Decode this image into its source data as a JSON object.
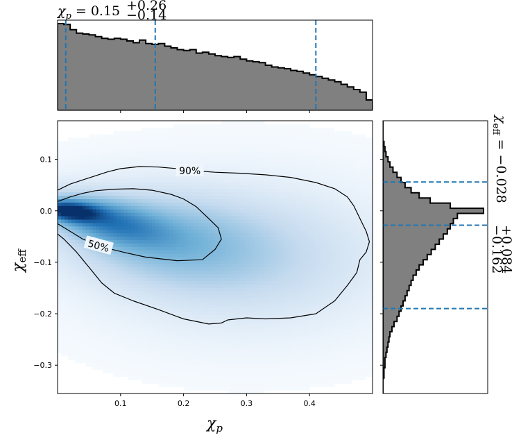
{
  "chart_data": {
    "type": "corner",
    "xlabel_symbol": "χ",
    "xlabel_sub": "p",
    "ylabel_symbol": "χ",
    "ylabel_sub": "eff",
    "top_title": {
      "symbol": "χ",
      "sub": "p",
      "equals": " = ",
      "median": "0.15",
      "upper": "+0.26",
      "lower": "−0.14"
    },
    "right_title": {
      "symbol": "χ",
      "sub": "eff",
      "equals": " = ",
      "median": "−0.028",
      "upper": "+0.084",
      "lower": "−0.162"
    },
    "x_range": [
      0.0,
      0.5
    ],
    "y_range": [
      -0.355,
      0.175
    ],
    "x_ticks": [
      0.1,
      0.2,
      0.3,
      0.4
    ],
    "x_tick_labels": [
      "0.1",
      "0.2",
      "0.3",
      "0.4"
    ],
    "y_ticks": [
      0.1,
      0.0,
      -0.1,
      -0.2,
      -0.3
    ],
    "y_tick_labels": [
      "0.1",
      "0.0",
      "−0.1",
      "−0.2",
      "−0.3"
    ],
    "chi_p_histogram": {
      "bin_edges_start": 0.0,
      "bin_width": 0.01,
      "counts": [
        1.0,
        0.99,
        0.93,
        0.89,
        0.88,
        0.87,
        0.85,
        0.83,
        0.82,
        0.83,
        0.82,
        0.8,
        0.78,
        0.81,
        0.77,
        0.76,
        0.77,
        0.74,
        0.72,
        0.7,
        0.69,
        0.7,
        0.66,
        0.67,
        0.65,
        0.63,
        0.62,
        0.61,
        0.62,
        0.59,
        0.57,
        0.56,
        0.55,
        0.52,
        0.5,
        0.49,
        0.48,
        0.46,
        0.45,
        0.43,
        0.41,
        0.39,
        0.37,
        0.35,
        0.33,
        0.3,
        0.27,
        0.24,
        0.21,
        0.12
      ],
      "quantile_lines": [
        0.013,
        0.155,
        0.41
      ],
      "color": "#808080"
    },
    "chi_eff_histogram": {
      "bin_edges_start": -0.355,
      "bin_width": 0.01,
      "counts": [
        0.0,
        0.0,
        0.0,
        0.01,
        0.01,
        0.02,
        0.02,
        0.03,
        0.04,
        0.05,
        0.06,
        0.07,
        0.09,
        0.11,
        0.14,
        0.16,
        0.18,
        0.2,
        0.22,
        0.24,
        0.26,
        0.28,
        0.3,
        0.33,
        0.36,
        0.4,
        0.44,
        0.48,
        0.52,
        0.56,
        0.6,
        0.64,
        0.67,
        0.7,
        0.74,
        1.0,
        0.67,
        0.47,
        0.36,
        0.28,
        0.22,
        0.18,
        0.14,
        0.1,
        0.07,
        0.05,
        0.03,
        0.02,
        0.01,
        0.0,
        0.0,
        0.0,
        0.0
      ],
      "quantile_lines": [
        -0.19,
        -0.028,
        0.056
      ],
      "color": "#808080"
    },
    "density": {
      "colormap": "Blues",
      "peak": [
        0.015,
        0.0
      ],
      "components": [
        {
          "cx": 0.02,
          "cy": -0.001,
          "sx": 0.03,
          "sy": 0.012,
          "w": 1.0,
          "rho": -0.3
        },
        {
          "cx": 0.08,
          "cy": -0.02,
          "sx": 0.06,
          "sy": 0.03,
          "w": 0.45,
          "rho": -0.5
        },
        {
          "cx": 0.17,
          "cy": -0.055,
          "sx": 0.1,
          "sy": 0.055,
          "w": 0.22,
          "rho": -0.2
        },
        {
          "cx": 0.3,
          "cy": -0.09,
          "sx": 0.13,
          "sy": 0.08,
          "w": 0.1,
          "rho": 0.0
        }
      ]
    },
    "contours": [
      {
        "label": "90%",
        "label_pos": [
          0.21,
          0.078
        ],
        "points": [
          [
            0.0,
            0.04
          ],
          [
            0.02,
            0.052
          ],
          [
            0.05,
            0.064
          ],
          [
            0.08,
            0.076
          ],
          [
            0.1,
            0.082
          ],
          [
            0.13,
            0.086
          ],
          [
            0.16,
            0.085
          ],
          [
            0.19,
            0.082
          ],
          [
            0.215,
            0.078
          ],
          [
            0.25,
            0.075
          ],
          [
            0.29,
            0.073
          ],
          [
            0.33,
            0.07
          ],
          [
            0.37,
            0.065
          ],
          [
            0.41,
            0.055
          ],
          [
            0.44,
            0.043
          ],
          [
            0.46,
            0.027
          ],
          [
            0.47,
            0.01
          ],
          [
            0.48,
            -0.015
          ],
          [
            0.49,
            -0.04
          ],
          [
            0.495,
            -0.06
          ],
          [
            0.49,
            -0.08
          ],
          [
            0.48,
            -0.095
          ],
          [
            0.475,
            -0.12
          ],
          [
            0.46,
            -0.145
          ],
          [
            0.44,
            -0.175
          ],
          [
            0.41,
            -0.2
          ],
          [
            0.37,
            -0.208
          ],
          [
            0.33,
            -0.21
          ],
          [
            0.3,
            -0.208
          ],
          [
            0.27,
            -0.212
          ],
          [
            0.26,
            -0.218
          ],
          [
            0.24,
            -0.22
          ],
          [
            0.2,
            -0.21
          ],
          [
            0.16,
            -0.192
          ],
          [
            0.12,
            -0.175
          ],
          [
            0.09,
            -0.16
          ],
          [
            0.07,
            -0.14
          ],
          [
            0.05,
            -0.11
          ],
          [
            0.03,
            -0.08
          ],
          [
            0.01,
            -0.055
          ],
          [
            0.0,
            -0.045
          ]
        ]
      },
      {
        "label": "50%",
        "label_pos": [
          0.065,
          -0.068
        ],
        "points": [
          [
            0.0,
            0.018
          ],
          [
            0.02,
            0.027
          ],
          [
            0.04,
            0.034
          ],
          [
            0.06,
            0.039
          ],
          [
            0.09,
            0.042
          ],
          [
            0.12,
            0.043
          ],
          [
            0.15,
            0.04
          ],
          [
            0.18,
            0.032
          ],
          [
            0.2,
            0.023
          ],
          [
            0.22,
            0.008
          ],
          [
            0.24,
            -0.015
          ],
          [
            0.255,
            -0.033
          ],
          [
            0.26,
            -0.055
          ],
          [
            0.25,
            -0.075
          ],
          [
            0.23,
            -0.095
          ],
          [
            0.19,
            -0.097
          ],
          [
            0.14,
            -0.09
          ],
          [
            0.11,
            -0.082
          ],
          [
            0.08,
            -0.073
          ],
          [
            0.06,
            -0.065
          ],
          [
            0.04,
            -0.055
          ],
          [
            0.02,
            -0.04
          ],
          [
            0.0,
            -0.025
          ]
        ]
      }
    ]
  }
}
